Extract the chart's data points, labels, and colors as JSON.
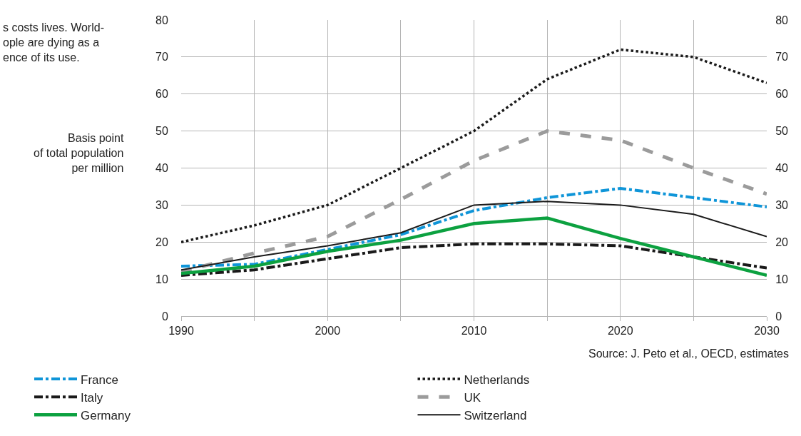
{
  "chart_data": {
    "type": "line",
    "ylabel": "Basis point\nof total population\nper million",
    "x": [
      1990,
      1995,
      2000,
      2005,
      2010,
      2015,
      2020,
      2025,
      2030
    ],
    "xlim": [
      1990,
      2030
    ],
    "xticks": [
      1990,
      {
        "value": 1995,
        "label": null
      },
      2000,
      {
        "value": 2005,
        "label": null
      },
      2010,
      {
        "value": 2015,
        "label": null
      },
      2020,
      {
        "value": 2025,
        "label": null
      },
      2030
    ],
    "ylim": [
      0,
      80
    ],
    "yticks": [
      0,
      10,
      20,
      30,
      40,
      50,
      60,
      70,
      80
    ],
    "y2lim": [
      0,
      80
    ],
    "y2ticks": [
      0,
      10,
      20,
      30,
      40,
      50,
      60,
      70,
      80
    ],
    "grid": true,
    "legend": "bottom",
    "marker": "none",
    "annotations": [
      "s costs lives. World-\nople are dying as a\nence of its use.",
      "Source: J. Peto et al., OECD, estimates"
    ],
    "series": [
      {
        "name": "France",
        "color": "#0f95d8",
        "line_style": "dashdot",
        "values": [
          13.5,
          14,
          18,
          22,
          28.5,
          32,
          34.5,
          32,
          29.5
        ]
      },
      {
        "name": "Netherlands",
        "color": "#1a1a1a",
        "line_style": "dotted",
        "values": [
          20,
          24.5,
          30,
          40,
          50,
          64,
          72,
          70,
          63
        ]
      },
      {
        "name": "Italy",
        "color": "#1a1a1a",
        "line_style": "dashdot",
        "values": [
          11,
          12.5,
          15.5,
          18.5,
          19.5,
          19.5,
          19,
          16,
          13
        ]
      },
      {
        "name": "UK",
        "color": "#9b9b9b",
        "line_style": "dashed",
        "values": [
          12,
          17,
          21.5,
          31.5,
          42,
          50,
          47.5,
          40,
          33
        ]
      },
      {
        "name": "Germany",
        "color": "#0ca140",
        "line_style": "solid",
        "values": [
          11.5,
          13.5,
          17.5,
          20.5,
          25,
          26.5,
          21,
          16,
          11
        ]
      },
      {
        "name": "Switzerland",
        "color": "#1a1a1a",
        "line_style": "solid",
        "values": [
          12.5,
          16,
          19,
          22.5,
          30,
          31,
          30,
          27.5,
          21.5
        ]
      }
    ]
  }
}
